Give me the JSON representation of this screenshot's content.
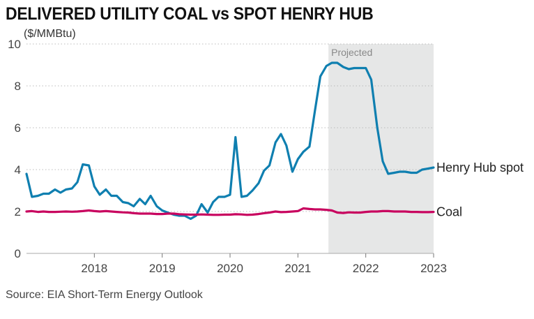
{
  "chart_data": {
    "type": "line",
    "title": "DELIVERED UTILITY COAL vs SPOT HENRY HUB",
    "ylabel": "($/MMBtu)",
    "ylim": [
      0,
      10
    ],
    "yticks": [
      0,
      2,
      4,
      6,
      8,
      10
    ],
    "xlim": [
      2017.0,
      2023.0
    ],
    "xticks": [
      2018,
      2019,
      2020,
      2021,
      2022,
      2023
    ],
    "grid": true,
    "legend": "direct labels at right end of lines",
    "projected_region": {
      "label": "Projected",
      "start": 2021.45,
      "end": 2023.0
    },
    "source": "Source: EIA Short-Term Energy Outlook",
    "series": [
      {
        "name": "Henry Hub spot",
        "color": "#0f7fb0",
        "x": [
          2017.0,
          2017.08,
          2017.17,
          2017.25,
          2017.33,
          2017.42,
          2017.5,
          2017.58,
          2017.67,
          2017.75,
          2017.83,
          2017.92,
          2018.0,
          2018.08,
          2018.17,
          2018.25,
          2018.33,
          2018.42,
          2018.5,
          2018.58,
          2018.67,
          2018.75,
          2018.83,
          2018.92,
          2019.0,
          2019.08,
          2019.17,
          2019.25,
          2019.33,
          2019.42,
          2019.5,
          2019.58,
          2019.67,
          2019.75,
          2019.83,
          2019.92,
          2020.0,
          2020.08,
          2020.17,
          2020.25,
          2020.33,
          2020.42,
          2020.5,
          2020.58,
          2020.67,
          2020.75,
          2020.83,
          2020.92,
          2021.0,
          2021.08,
          2021.17,
          2021.25,
          2021.33,
          2021.42,
          2021.5,
          2021.58,
          2021.67,
          2021.75,
          2021.83,
          2021.92,
          2022.0,
          2022.08,
          2022.17,
          2022.25,
          2022.33,
          2022.42,
          2022.5,
          2022.58,
          2022.67,
          2022.75,
          2022.83,
          2022.92,
          2023.0
        ],
        "values": [
          3.8,
          2.7,
          2.75,
          2.85,
          2.85,
          3.05,
          2.9,
          3.05,
          3.1,
          3.4,
          4.25,
          4.2,
          3.2,
          2.8,
          3.05,
          2.75,
          2.75,
          2.45,
          2.4,
          2.25,
          2.6,
          2.35,
          2.75,
          2.25,
          2.05,
          1.95,
          1.85,
          1.8,
          1.8,
          1.65,
          1.8,
          2.35,
          1.95,
          2.45,
          2.7,
          2.7,
          2.8,
          5.55,
          2.7,
          2.75,
          3.0,
          3.35,
          3.95,
          4.2,
          5.3,
          5.7,
          5.15,
          3.9,
          4.5,
          4.85,
          5.1,
          6.8,
          8.45,
          8.95,
          9.1,
          9.1,
          8.9,
          8.8,
          8.85,
          8.85,
          8.85,
          8.3,
          6.0,
          4.4,
          3.8,
          3.85,
          3.9,
          3.9,
          3.85,
          3.85,
          4.0,
          4.05,
          4.1
        ]
      },
      {
        "name": "Coal",
        "color": "#c8045f",
        "x": [
          2017.0,
          2017.08,
          2017.17,
          2017.25,
          2017.33,
          2017.42,
          2017.5,
          2017.58,
          2017.67,
          2017.75,
          2017.83,
          2017.92,
          2018.0,
          2018.08,
          2018.17,
          2018.25,
          2018.33,
          2018.42,
          2018.5,
          2018.58,
          2018.67,
          2018.75,
          2018.83,
          2018.92,
          2019.0,
          2019.08,
          2019.17,
          2019.25,
          2019.33,
          2019.42,
          2019.5,
          2019.58,
          2019.67,
          2019.75,
          2019.83,
          2019.92,
          2020.0,
          2020.08,
          2020.17,
          2020.25,
          2020.33,
          2020.42,
          2020.5,
          2020.58,
          2020.67,
          2020.75,
          2020.83,
          2020.92,
          2021.0,
          2021.08,
          2021.17,
          2021.25,
          2021.33,
          2021.42,
          2021.5,
          2021.58,
          2021.67,
          2021.75,
          2021.83,
          2021.92,
          2022.0,
          2022.08,
          2022.17,
          2022.25,
          2022.33,
          2022.42,
          2022.5,
          2022.58,
          2022.67,
          2022.75,
          2022.83,
          2022.92,
          2023.0
        ],
        "values": [
          2.0,
          2.02,
          1.98,
          2.0,
          1.98,
          1.98,
          1.99,
          2.0,
          1.99,
          2.0,
          2.02,
          2.05,
          2.02,
          2.0,
          2.02,
          2.0,
          1.98,
          1.96,
          1.95,
          1.92,
          1.9,
          1.9,
          1.9,
          1.88,
          1.88,
          1.9,
          1.9,
          1.87,
          1.86,
          1.85,
          1.85,
          1.86,
          1.85,
          1.84,
          1.84,
          1.85,
          1.85,
          1.87,
          1.86,
          1.84,
          1.85,
          1.88,
          1.92,
          1.95,
          2.0,
          1.97,
          1.98,
          2.0,
          2.02,
          2.15,
          2.12,
          2.1,
          2.1,
          2.08,
          2.05,
          1.95,
          1.93,
          1.96,
          1.95,
          1.95,
          1.98,
          2.0,
          2.0,
          2.02,
          2.02,
          2.0,
          2.0,
          2.0,
          1.98,
          1.98,
          1.97,
          1.97,
          1.98
        ]
      }
    ]
  }
}
